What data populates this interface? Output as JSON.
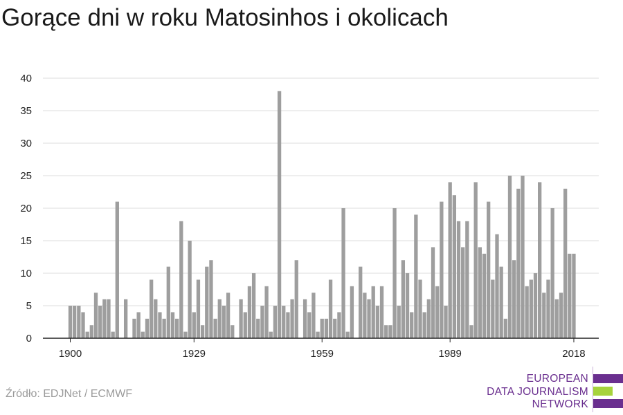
{
  "title": "Gorące dni w roku Matosinhos i okolicach",
  "source": "Źródło: EDJNet / ECMWF",
  "logo": {
    "lines": [
      "EUROPEAN",
      "DATA JOURNALISM",
      "NETWORK"
    ],
    "colors": {
      "purple": "#6a2f8f",
      "green": "#a6d33c"
    }
  },
  "colors": {
    "bar": "#9e9e9e",
    "grid": "#dddddd",
    "axis": "#222222"
  },
  "chart_data": {
    "type": "bar",
    "title": "Gorące dni w roku Matosinhos i okolicach",
    "xlabel": "",
    "ylabel": "",
    "ylim": [
      0,
      40
    ],
    "yticks": [
      0,
      5,
      10,
      15,
      20,
      25,
      30,
      35,
      40
    ],
    "xticks": [
      1900,
      1929,
      1959,
      1989,
      2018
    ],
    "grid": true,
    "x": [
      1900,
      1901,
      1902,
      1903,
      1904,
      1905,
      1906,
      1907,
      1908,
      1909,
      1910,
      1911,
      1912,
      1913,
      1914,
      1915,
      1916,
      1917,
      1918,
      1919,
      1920,
      1921,
      1922,
      1923,
      1924,
      1925,
      1926,
      1927,
      1928,
      1929,
      1930,
      1931,
      1932,
      1933,
      1934,
      1935,
      1936,
      1937,
      1938,
      1939,
      1940,
      1941,
      1942,
      1943,
      1944,
      1945,
      1946,
      1947,
      1948,
      1949,
      1950,
      1951,
      1952,
      1953,
      1954,
      1955,
      1956,
      1957,
      1958,
      1959,
      1960,
      1961,
      1962,
      1963,
      1964,
      1965,
      1966,
      1967,
      1968,
      1969,
      1970,
      1971,
      1972,
      1973,
      1974,
      1975,
      1976,
      1977,
      1978,
      1979,
      1980,
      1981,
      1982,
      1983,
      1984,
      1985,
      1986,
      1987,
      1988,
      1989,
      1990,
      1991,
      1992,
      1993,
      1994,
      1995,
      1996,
      1997,
      1998,
      1999,
      2000,
      2001,
      2002,
      2003,
      2004,
      2005,
      2006,
      2007,
      2008,
      2009,
      2010,
      2011,
      2012,
      2013,
      2014,
      2015,
      2016,
      2017,
      2018
    ],
    "values": [
      5,
      5,
      5,
      4,
      1,
      2,
      7,
      5,
      6,
      6,
      1,
      21,
      0,
      6,
      0,
      3,
      4,
      1,
      3,
      9,
      6,
      4,
      3,
      11,
      4,
      3,
      18,
      1,
      15,
      4,
      9,
      2,
      11,
      12,
      3,
      6,
      5,
      7,
      2,
      0,
      6,
      4,
      8,
      10,
      3,
      5,
      8,
      1,
      5,
      38,
      5,
      4,
      6,
      12,
      0,
      6,
      4,
      7,
      1,
      3,
      3,
      9,
      3,
      4,
      20,
      1,
      8,
      0,
      11,
      7,
      6,
      8,
      5,
      8,
      2,
      2,
      20,
      5,
      12,
      10,
      4,
      19,
      9,
      4,
      6,
      14,
      8,
      21,
      5,
      24,
      22,
      18,
      14,
      18,
      2,
      24,
      14,
      13,
      21,
      9,
      16,
      11,
      3,
      25,
      12,
      23,
      25,
      8,
      9,
      10,
      24,
      7,
      9,
      20,
      6,
      7,
      23,
      13,
      13
    ]
  }
}
